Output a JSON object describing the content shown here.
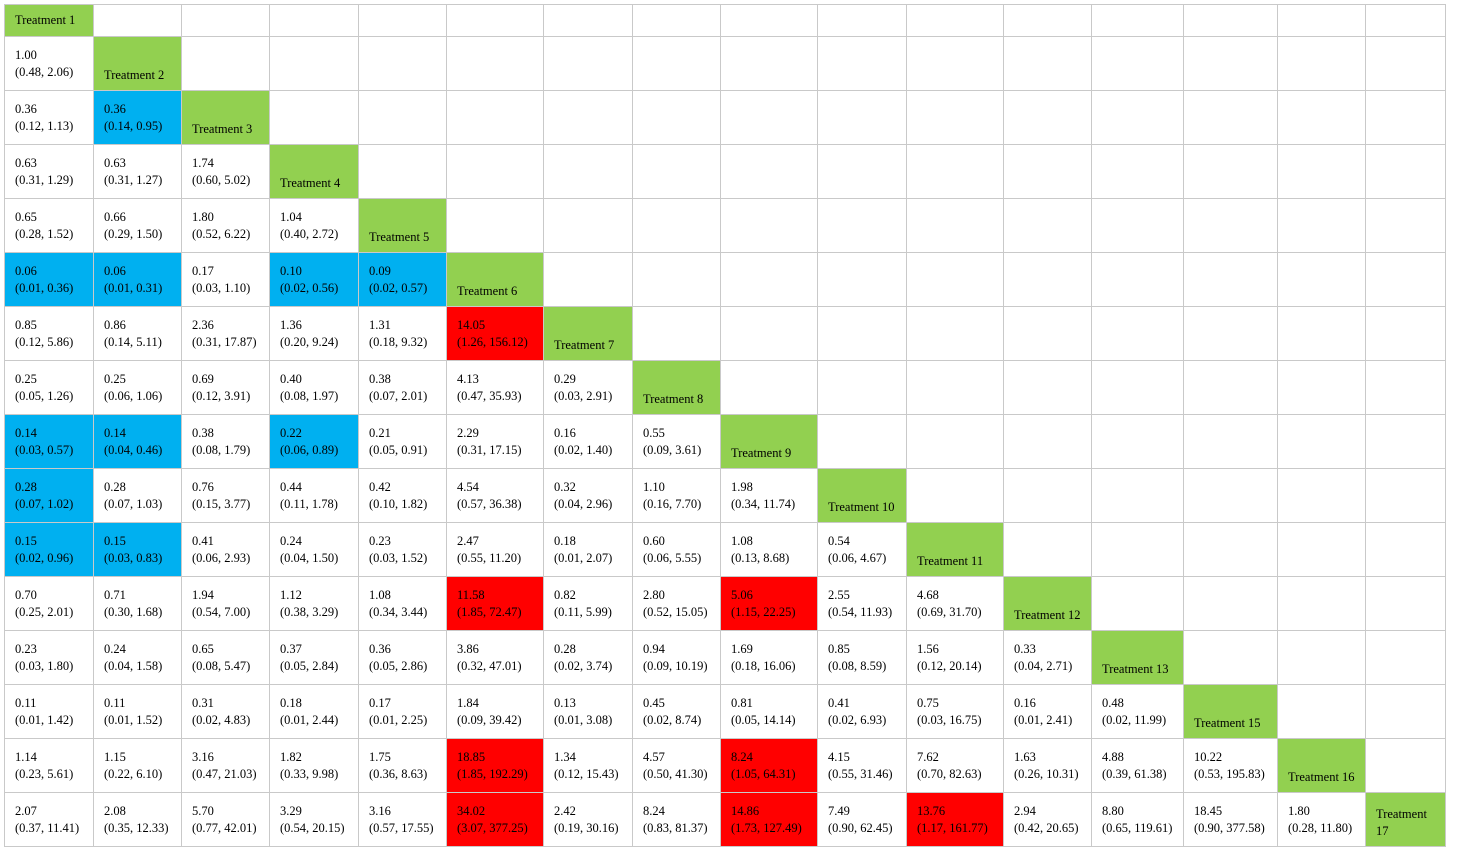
{
  "colors": {
    "diagonal": "#92d050",
    "blue": "#00b0f0",
    "red": "#ff0000"
  },
  "table": {
    "rows": [
      {
        "label": "Treatment 1",
        "cells": []
      },
      {
        "label": "Treatment 2",
        "cells": [
          {
            "est": "1.00",
            "ci": "(0.48, 2.06)"
          }
        ]
      },
      {
        "label": "Treatment 3",
        "cells": [
          {
            "est": "0.36",
            "ci": "(0.12, 1.13)"
          },
          {
            "est": "0.36",
            "ci": "(0.14, 0.95)",
            "color": "blue"
          }
        ]
      },
      {
        "label": "Treatment 4",
        "cells": [
          {
            "est": "0.63",
            "ci": "(0.31, 1.29)"
          },
          {
            "est": "0.63",
            "ci": "(0.31, 1.27)"
          },
          {
            "est": "1.74",
            "ci": "(0.60, 5.02)"
          }
        ]
      },
      {
        "label": "Treatment 5",
        "cells": [
          {
            "est": "0.65",
            "ci": "(0.28, 1.52)"
          },
          {
            "est": "0.66",
            "ci": "(0.29, 1.50)"
          },
          {
            "est": "1.80",
            "ci": "(0.52, 6.22)"
          },
          {
            "est": "1.04",
            "ci": "(0.40, 2.72)"
          }
        ]
      },
      {
        "label": "Treatment 6",
        "cells": [
          {
            "est": "0.06",
            "ci": "(0.01, 0.36)",
            "color": "blue"
          },
          {
            "est": "0.06",
            "ci": "(0.01, 0.31)",
            "color": "blue"
          },
          {
            "est": "0.17",
            "ci": "(0.03, 1.10)"
          },
          {
            "est": "0.10",
            "ci": "(0.02, 0.56)",
            "color": "blue"
          },
          {
            "est": "0.09",
            "ci": "(0.02, 0.57)",
            "color": "blue"
          }
        ]
      },
      {
        "label": "Treatment 7",
        "cells": [
          {
            "est": "0.85",
            "ci": "(0.12, 5.86)"
          },
          {
            "est": "0.86",
            "ci": "(0.14, 5.11)"
          },
          {
            "est": "2.36",
            "ci": "(0.31, 17.87)"
          },
          {
            "est": "1.36",
            "ci": "(0.20, 9.24)"
          },
          {
            "est": "1.31",
            "ci": "(0.18, 9.32)"
          },
          {
            "est": "14.05",
            "ci": "(1.26, 156.12)",
            "color": "red"
          }
        ]
      },
      {
        "label": "Treatment 8",
        "cells": [
          {
            "est": "0.25",
            "ci": "(0.05, 1.26)"
          },
          {
            "est": "0.25",
            "ci": "(0.06, 1.06)"
          },
          {
            "est": "0.69",
            "ci": "(0.12, 3.91)"
          },
          {
            "est": "0.40",
            "ci": "(0.08, 1.97)"
          },
          {
            "est": "0.38",
            "ci": "(0.07, 2.01)"
          },
          {
            "est": "4.13",
            "ci": "(0.47, 35.93)"
          },
          {
            "est": "0.29",
            "ci": "(0.03, 2.91)"
          }
        ]
      },
      {
        "label": "Treatment 9",
        "cells": [
          {
            "est": "0.14",
            "ci": "(0.03, 0.57)",
            "color": "blue"
          },
          {
            "est": "0.14",
            "ci": "(0.04, 0.46)",
            "color": "blue"
          },
          {
            "est": "0.38",
            "ci": "(0.08, 1.79)"
          },
          {
            "est": "0.22",
            "ci": "(0.06, 0.89)",
            "color": "blue"
          },
          {
            "est": "0.21",
            "ci": "(0.05, 0.91)"
          },
          {
            "est": "2.29",
            "ci": "(0.31, 17.15)"
          },
          {
            "est": "0.16",
            "ci": "(0.02, 1.40)"
          },
          {
            "est": "0.55",
            "ci": "(0.09, 3.61)"
          }
        ]
      },
      {
        "label": "Treatment 10",
        "cells": [
          {
            "est": "0.28",
            "ci": "(0.07, 1.02)",
            "color": "blue"
          },
          {
            "est": "0.28",
            "ci": "(0.07, 1.03)"
          },
          {
            "est": "0.76",
            "ci": "(0.15, 3.77)"
          },
          {
            "est": "0.44",
            "ci": "(0.11, 1.78)"
          },
          {
            "est": "0.42",
            "ci": "(0.10, 1.82)"
          },
          {
            "est": "4.54",
            "ci": "(0.57, 36.38)"
          },
          {
            "est": "0.32",
            "ci": "(0.04, 2.96)"
          },
          {
            "est": "1.10",
            "ci": "(0.16, 7.70)"
          },
          {
            "est": "1.98",
            "ci": "(0.34, 11.74)"
          }
        ]
      },
      {
        "label": "Treatment 11",
        "cells": [
          {
            "est": "0.15",
            "ci": "(0.02, 0.96)",
            "color": "blue"
          },
          {
            "est": "0.15",
            "ci": "(0.03, 0.83)",
            "color": "blue"
          },
          {
            "est": "0.41",
            "ci": "(0.06, 2.93)"
          },
          {
            "est": "0.24",
            "ci": "(0.04, 1.50)"
          },
          {
            "est": "0.23",
            "ci": "(0.03, 1.52)"
          },
          {
            "est": "2.47",
            "ci": "(0.55, 11.20)"
          },
          {
            "est": "0.18",
            "ci": "(0.01, 2.07)"
          },
          {
            "est": "0.60",
            "ci": "(0.06, 5.55)"
          },
          {
            "est": "1.08",
            "ci": "(0.13, 8.68)"
          },
          {
            "est": "0.54",
            "ci": "(0.06, 4.67)"
          }
        ]
      },
      {
        "label": "Treatment 12",
        "cells": [
          {
            "est": "0.70",
            "ci": "(0.25, 2.01)"
          },
          {
            "est": "0.71",
            "ci": "(0.30, 1.68)"
          },
          {
            "est": "1.94",
            "ci": "(0.54, 7.00)"
          },
          {
            "est": "1.12",
            "ci": "(0.38, 3.29)"
          },
          {
            "est": "1.08",
            "ci": "(0.34, 3.44)"
          },
          {
            "est": "11.58",
            "ci": "(1.85, 72.47)",
            "color": "red"
          },
          {
            "est": "0.82",
            "ci": "(0.11, 5.99)"
          },
          {
            "est": "2.80",
            "ci": "(0.52, 15.05)"
          },
          {
            "est": "5.06",
            "ci": "(1.15, 22.25)",
            "color": "red"
          },
          {
            "est": "2.55",
            "ci": "(0.54, 11.93)"
          },
          {
            "est": "4.68",
            "ci": "(0.69, 31.70)"
          }
        ]
      },
      {
        "label": "Treatment 13",
        "cells": [
          {
            "est": "0.23",
            "ci": "(0.03, 1.80)"
          },
          {
            "est": "0.24",
            "ci": "(0.04, 1.58)"
          },
          {
            "est": "0.65",
            "ci": "(0.08, 5.47)"
          },
          {
            "est": "0.37",
            "ci": "(0.05, 2.84)"
          },
          {
            "est": "0.36",
            "ci": "(0.05, 2.86)"
          },
          {
            "est": "3.86",
            "ci": "(0.32, 47.01)"
          },
          {
            "est": "0.28",
            "ci": "(0.02, 3.74)"
          },
          {
            "est": "0.94",
            "ci": "(0.09, 10.19)"
          },
          {
            "est": "1.69",
            "ci": "(0.18, 16.06)"
          },
          {
            "est": "0.85",
            "ci": "(0.08, 8.59)"
          },
          {
            "est": "1.56",
            "ci": "(0.12, 20.14)"
          },
          {
            "est": "0.33",
            "ci": "(0.04, 2.71)"
          }
        ]
      },
      {
        "label": "Treatment 15",
        "cells": [
          {
            "est": "0.11",
            "ci": "(0.01, 1.42)"
          },
          {
            "est": "0.11",
            "ci": "(0.01, 1.52)"
          },
          {
            "est": "0.31",
            "ci": "(0.02, 4.83)"
          },
          {
            "est": "0.18",
            "ci": "(0.01, 2.44)"
          },
          {
            "est": "0.17",
            "ci": "(0.01, 2.25)"
          },
          {
            "est": "1.84",
            "ci": "(0.09, 39.42)"
          },
          {
            "est": "0.13",
            "ci": "(0.01, 3.08)"
          },
          {
            "est": "0.45",
            "ci": "(0.02, 8.74)"
          },
          {
            "est": "0.81",
            "ci": "(0.05, 14.14)"
          },
          {
            "est": "0.41",
            "ci": "(0.02, 6.93)"
          },
          {
            "est": "0.75",
            "ci": "(0.03, 16.75)"
          },
          {
            "est": "0.16",
            "ci": "(0.01, 2.41)"
          },
          {
            "est": "0.48",
            "ci": "(0.02, 11.99)"
          }
        ]
      },
      {
        "label": "Treatment 16",
        "cells": [
          {
            "est": "1.14",
            "ci": "(0.23, 5.61)"
          },
          {
            "est": "1.15",
            "ci": "(0.22, 6.10)"
          },
          {
            "est": "3.16",
            "ci": "(0.47, 21.03)"
          },
          {
            "est": "1.82",
            "ci": "(0.33, 9.98)"
          },
          {
            "est": "1.75",
            "ci": "(0.36, 8.63)"
          },
          {
            "est": "18.85",
            "ci": "(1.85, 192.29)",
            "color": "red"
          },
          {
            "est": "1.34",
            "ci": "(0.12, 15.43)"
          },
          {
            "est": "4.57",
            "ci": "(0.50, 41.30)"
          },
          {
            "est": "8.24",
            "ci": "(1.05, 64.31)",
            "color": "red"
          },
          {
            "est": "4.15",
            "ci": "(0.55, 31.46)"
          },
          {
            "est": "7.62",
            "ci": "(0.70, 82.63)"
          },
          {
            "est": "1.63",
            "ci": "(0.26, 10.31)"
          },
          {
            "est": "4.88",
            "ci": "(0.39, 61.38)"
          },
          {
            "est": "10.22",
            "ci": "(0.53, 195.83)"
          }
        ]
      },
      {
        "label": "Treatment 17",
        "cells": [
          {
            "est": "2.07",
            "ci": "(0.37, 11.41)"
          },
          {
            "est": "2.08",
            "ci": "(0.35, 12.33)"
          },
          {
            "est": "5.70",
            "ci": "(0.77, 42.01)"
          },
          {
            "est": "3.29",
            "ci": "(0.54, 20.15)"
          },
          {
            "est": "3.16",
            "ci": "(0.57, 17.55)"
          },
          {
            "est": "34.02",
            "ci": "(3.07, 377.25)",
            "color": "red"
          },
          {
            "est": "2.42",
            "ci": "(0.19, 30.16)"
          },
          {
            "est": "8.24",
            "ci": "(0.83, 81.37)"
          },
          {
            "est": "14.86",
            "ci": "(1.73, 127.49)",
            "color": "red"
          },
          {
            "est": "7.49",
            "ci": "(0.90, 62.45)"
          },
          {
            "est": "13.76",
            "ci": "(1.17, 161.77)",
            "color": "red"
          },
          {
            "est": "2.94",
            "ci": "(0.42, 20.65)"
          },
          {
            "est": "8.80",
            "ci": "(0.65, 119.61)"
          },
          {
            "est": "18.45",
            "ci": "(0.90, 377.58)"
          },
          {
            "est": "1.80",
            "ci": "(0.28, 11.80)"
          }
        ]
      }
    ]
  }
}
